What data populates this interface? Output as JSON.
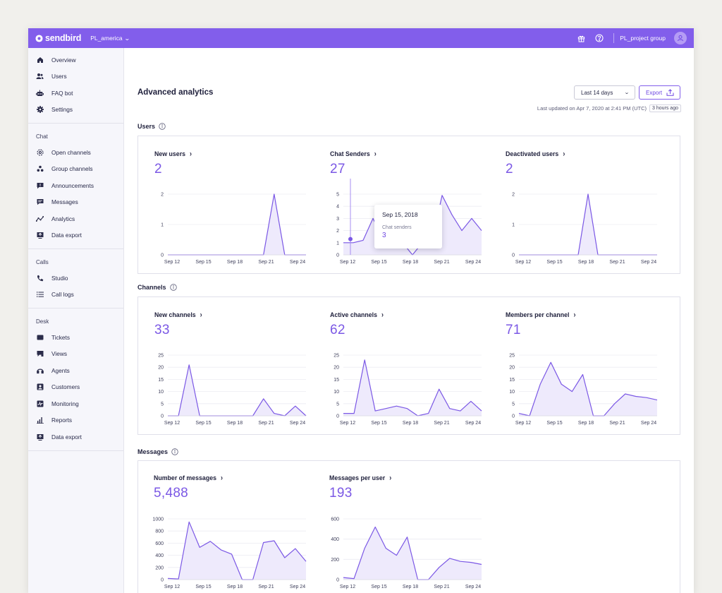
{
  "topbar": {
    "brand": "sendbird",
    "org": "PL_america",
    "project": "PL_project group"
  },
  "colors": {
    "accent": "#825eeb",
    "line": "#7b58e5",
    "fill": "#eeeafc"
  },
  "sidebar": {
    "top_items": [
      {
        "label": "Overview",
        "icon": "home-icon"
      },
      {
        "label": "Users",
        "icon": "users-icon"
      },
      {
        "label": "FAQ bot",
        "icon": "bot-icon"
      },
      {
        "label": "Settings",
        "icon": "gear-icon"
      }
    ],
    "chat": {
      "title": "Chat",
      "items": [
        {
          "label": "Open channels",
          "icon": "open-channels-icon"
        },
        {
          "label": "Group channels",
          "icon": "group-channels-icon"
        },
        {
          "label": "Announcements",
          "icon": "announcement-icon"
        },
        {
          "label": "Messages",
          "icon": "message-icon"
        },
        {
          "label": "Analytics",
          "icon": "analytics-icon"
        },
        {
          "label": "Data export",
          "icon": "export-icon"
        }
      ]
    },
    "calls": {
      "title": "Calls",
      "items": [
        {
          "label": "Studio",
          "icon": "phone-icon"
        },
        {
          "label": "Call logs",
          "icon": "list-icon"
        }
      ]
    },
    "desk": {
      "title": "Desk",
      "items": [
        {
          "label": "Tickets",
          "icon": "ticket-icon"
        },
        {
          "label": "Views",
          "icon": "views-icon"
        },
        {
          "label": "Agents",
          "icon": "headset-icon"
        },
        {
          "label": "Customers",
          "icon": "customer-icon"
        },
        {
          "label": "Monitoring",
          "icon": "monitor-icon"
        },
        {
          "label": "Reports",
          "icon": "bar-chart-icon"
        },
        {
          "label": "Data export",
          "icon": "export-icon"
        }
      ]
    }
  },
  "header": {
    "title": "Advanced analytics",
    "range": "Last 14 days",
    "export": "Export",
    "last_updated": "Last updated on Apr 7, 2020 at 2:41 PM (UTC)",
    "ago": "3 hours ago"
  },
  "sections": {
    "users": "Users",
    "channels": "Channels",
    "messages": "Messages"
  },
  "tooltip": {
    "date": "Sep 15, 2018",
    "label": "Chat senders",
    "value": "3"
  },
  "metrics": {
    "new_users": {
      "name": "New users",
      "value": "2"
    },
    "chat_senders": {
      "name": "Chat Senders",
      "value": "27"
    },
    "deactivated_users": {
      "name": "Deactivated users",
      "value": "2"
    },
    "new_channels": {
      "name": "New channels",
      "value": "33"
    },
    "active_channels": {
      "name": "Active channels",
      "value": "62"
    },
    "members_per_channel": {
      "name": "Members per channel",
      "value": "71"
    },
    "number_of_messages": {
      "name": "Number of messages",
      "value": "5,488"
    },
    "messages_per_user": {
      "name": "Messages per user",
      "value": "193"
    }
  },
  "chart_data": [
    {
      "id": "new_users",
      "type": "area",
      "x_ticks": [
        "Sep 12",
        "Sep 15",
        "Sep 18",
        "Sep 21",
        "Sep 24"
      ],
      "y_ticks": [
        0,
        1,
        2
      ],
      "ylim": [
        0,
        2
      ],
      "values": [
        0,
        0,
        0,
        0,
        0,
        0,
        0,
        0,
        0,
        0,
        2,
        0,
        0,
        0
      ]
    },
    {
      "id": "chat_senders",
      "type": "area",
      "x_ticks": [
        "Sep 12",
        "Sep 15",
        "Sep 18",
        "Sep 21",
        "Sep 24"
      ],
      "y_ticks": [
        0,
        1,
        2,
        3,
        4,
        5
      ],
      "ylim": [
        0,
        5
      ],
      "values": [
        1,
        1,
        1.2,
        3,
        1.3,
        1,
        1,
        0,
        1,
        1.2,
        4.9,
        3.3,
        2,
        3,
        2
      ]
    },
    {
      "id": "deactivated_users",
      "type": "area",
      "x_ticks": [
        "Sep 12",
        "Sep 15",
        "Sep 18",
        "Sep 21",
        "Sep 24"
      ],
      "y_ticks": [
        0,
        1,
        2
      ],
      "ylim": [
        0,
        2
      ],
      "values": [
        0,
        0,
        0,
        0,
        0,
        0,
        0,
        2,
        0,
        0,
        0,
        0,
        0,
        0,
        0
      ]
    },
    {
      "id": "new_channels",
      "type": "area",
      "x_ticks": [
        "Sep 12",
        "Sep 15",
        "Sep 18",
        "Sep 21",
        "Sep 24"
      ],
      "y_ticks": [
        0,
        5,
        10,
        15,
        20,
        25
      ],
      "ylim": [
        0,
        25
      ],
      "values": [
        0,
        0,
        21,
        0,
        0,
        0,
        0,
        0,
        0,
        7,
        1,
        0,
        4,
        0
      ]
    },
    {
      "id": "active_channels",
      "type": "area",
      "x_ticks": [
        "Sep 12",
        "Sep 15",
        "Sep 18",
        "Sep 21",
        "Sep 24"
      ],
      "y_ticks": [
        0,
        5,
        10,
        15,
        20,
        25
      ],
      "ylim": [
        0,
        25
      ],
      "values": [
        1,
        1,
        23,
        2,
        3,
        4,
        3,
        0,
        1,
        11,
        3,
        2,
        6,
        2
      ]
    },
    {
      "id": "members_per_channel",
      "type": "area",
      "x_ticks": [
        "Sep 12",
        "Sep 15",
        "Sep 18",
        "Sep 21",
        "Sep 24"
      ],
      "y_ticks": [
        0,
        5,
        10,
        15,
        20,
        25
      ],
      "ylim": [
        0,
        25
      ],
      "values": [
        1,
        0,
        13,
        22,
        13,
        10,
        17,
        0,
        0,
        5,
        9,
        8,
        7.5,
        6.5
      ]
    },
    {
      "id": "number_of_messages",
      "type": "area",
      "x_ticks": [
        "Sep 12",
        "Sep 15",
        "Sep 18",
        "Sep 21",
        "Sep 24"
      ],
      "y_ticks": [
        0,
        200,
        400,
        600,
        800,
        1000
      ],
      "ylim": [
        0,
        1000
      ],
      "values": [
        20,
        10,
        950,
        530,
        630,
        490,
        420,
        0,
        0,
        610,
        640,
        360,
        510,
        300
      ]
    },
    {
      "id": "messages_per_user",
      "type": "area",
      "x_ticks": [
        "Sep 12",
        "Sep 15",
        "Sep 18",
        "Sep 21",
        "Sep 24"
      ],
      "y_ticks": [
        0,
        200,
        400,
        600
      ],
      "ylim": [
        0,
        600
      ],
      "values": [
        20,
        10,
        310,
        520,
        310,
        240,
        420,
        0,
        0,
        120,
        210,
        180,
        170,
        150
      ]
    }
  ]
}
